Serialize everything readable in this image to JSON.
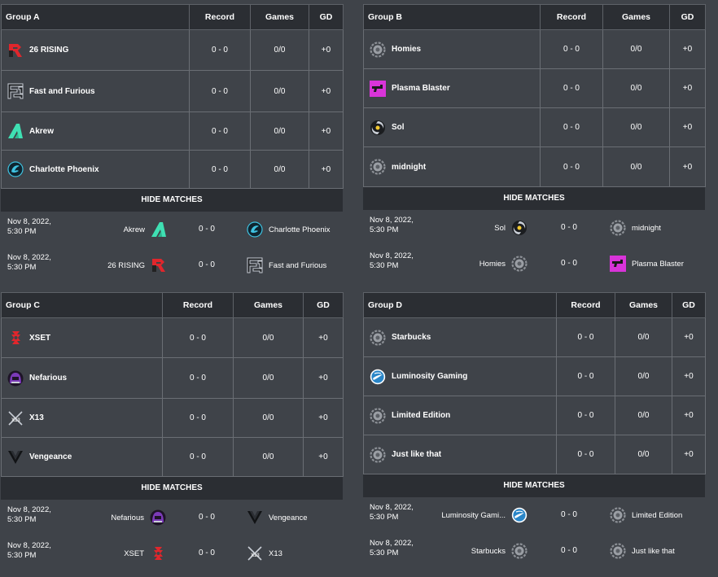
{
  "hide_label": "HIDE MATCHES",
  "columns": {
    "record": "Record",
    "games": "Games",
    "gd": "GD"
  },
  "groups": [
    {
      "name": "Group A",
      "teams": [
        {
          "name": "26 RISING",
          "logo": "rising-logo-icon",
          "record": "0 - 0",
          "games": "0/0",
          "gd": "+0"
        },
        {
          "name": "Fast and Furious",
          "logo": "fast-furious-logo-icon",
          "record": "0 - 0",
          "games": "0/0",
          "gd": "+0"
        },
        {
          "name": "Akrew",
          "logo": "akrew-logo-icon",
          "record": "0 - 0",
          "games": "0/0",
          "gd": "+0"
        },
        {
          "name": "Charlotte Phoenix",
          "logo": "charlotte-phoenix-logo-icon",
          "record": "0 - 0",
          "games": "0/0",
          "gd": "+0"
        }
      ],
      "matches": [
        {
          "date": "Nov 8, 2022,",
          "time": "5:30 PM",
          "home": "Akrew",
          "score": "0 - 0",
          "away": "Charlotte Phoenix"
        },
        {
          "date": "Nov 8, 2022,",
          "time": "5:30 PM",
          "home": "26 RISING",
          "score": "0 - 0",
          "away": "Fast and Furious"
        }
      ]
    },
    {
      "name": "Group B",
      "teams": [
        {
          "name": "Homies",
          "logo": "default-gear-logo-icon",
          "record": "0 - 0",
          "games": "0/0",
          "gd": "+0"
        },
        {
          "name": "Plasma Blaster",
          "logo": "plasma-blaster-logo-icon",
          "record": "0 - 0",
          "games": "0/0",
          "gd": "+0"
        },
        {
          "name": "Sol",
          "logo": "sol-logo-icon",
          "record": "0 - 0",
          "games": "0/0",
          "gd": "+0"
        },
        {
          "name": "midnight",
          "logo": "default-gear-logo-icon",
          "record": "0 - 0",
          "games": "0/0",
          "gd": "+0"
        }
      ],
      "matches": [
        {
          "date": "Nov 8, 2022,",
          "time": "5:30 PM",
          "home": "Sol",
          "score": "0 - 0",
          "away": "midnight"
        },
        {
          "date": "Nov 8, 2022,",
          "time": "5:30 PM",
          "home": "Homies",
          "score": "0 - 0",
          "away": "Plasma Blaster"
        }
      ]
    },
    {
      "name": "Group C",
      "teams": [
        {
          "name": "XSET",
          "logo": "xset-logo-icon",
          "record": "0 - 0",
          "games": "0/0",
          "gd": "+0"
        },
        {
          "name": "Nefarious",
          "logo": "nefarious-logo-icon",
          "record": "0 - 0",
          "games": "0/0",
          "gd": "+0"
        },
        {
          "name": "X13",
          "logo": "x13-logo-icon",
          "record": "0 - 0",
          "games": "0/0",
          "gd": "+0"
        },
        {
          "name": "Vengeance",
          "logo": "vengeance-logo-icon",
          "record": "0 - 0",
          "games": "0/0",
          "gd": "+0"
        }
      ],
      "matches": [
        {
          "date": "Nov 8, 2022,",
          "time": "5:30 PM",
          "home": "Nefarious",
          "score": "0 - 0",
          "away": "Vengeance"
        },
        {
          "date": "Nov 8, 2022,",
          "time": "5:30 PM",
          "home": "XSET",
          "score": "0 - 0",
          "away": "X13"
        }
      ]
    },
    {
      "name": "Group D",
      "teams": [
        {
          "name": "Starbucks",
          "logo": "default-gear-logo-icon",
          "record": "0 - 0",
          "games": "0/0",
          "gd": "+0"
        },
        {
          "name": "Luminosity Gaming",
          "logo": "luminosity-logo-icon",
          "record": "0 - 0",
          "games": "0/0",
          "gd": "+0"
        },
        {
          "name": "Limited Edition",
          "logo": "default-gear-logo-icon",
          "record": "0 - 0",
          "games": "0/0",
          "gd": "+0"
        },
        {
          "name": "Just like that",
          "logo": "default-gear-logo-icon",
          "record": "0 - 0",
          "games": "0/0",
          "gd": "+0"
        }
      ],
      "matches": [
        {
          "date": "Nov 8, 2022,",
          "time": "5:30 PM",
          "home": "Luminosity Gami...",
          "score": "0 - 0",
          "away": "Limited Edition"
        },
        {
          "date": "Nov 8, 2022,",
          "time": "5:30 PM",
          "home": "Starbucks",
          "score": "0 - 0",
          "away": "Just like that"
        }
      ]
    }
  ]
}
